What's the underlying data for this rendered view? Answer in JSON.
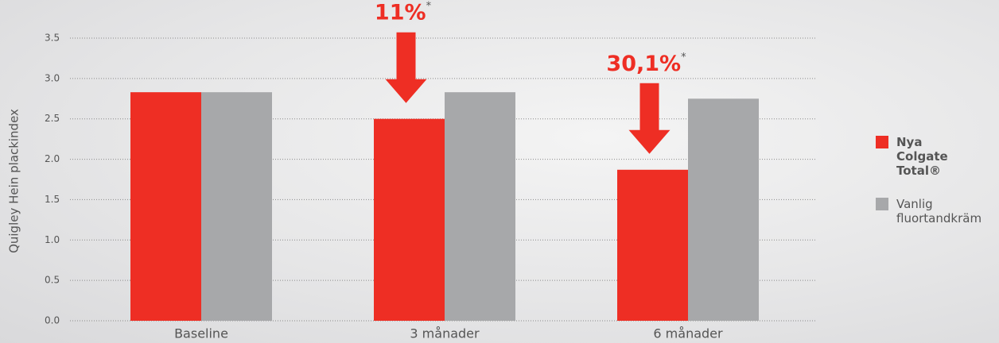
{
  "chart_data": {
    "type": "bar",
    "y_label": "Quigley Hein plackindex",
    "categories": [
      "Baseline",
      "3 månader",
      "6 månader"
    ],
    "series": [
      {
        "name": "Nya Colgate Total®",
        "color": "#ee2e24",
        "values": [
          2.83,
          2.5,
          1.87
        ]
      },
      {
        "name": "Vanlig fluortandkräm",
        "color": "#a7a8aa",
        "values": [
          2.83,
          2.83,
          2.75
        ]
      }
    ],
    "ylim": [
      0,
      3.5
    ],
    "yticks": [
      {
        "value": 0,
        "label": "0.0"
      },
      0.5,
      {
        "value": 1,
        "label": "1.0"
      },
      1.5,
      {
        "value": 2,
        "label": "2.0"
      },
      2.5,
      {
        "value": 3,
        "label": "3.0"
      },
      3.5
    ],
    "grid": true,
    "annotations": [
      {
        "text": "11%",
        "note": "*"
      },
      {
        "text": "30,1%",
        "note": "*"
      }
    ]
  }
}
